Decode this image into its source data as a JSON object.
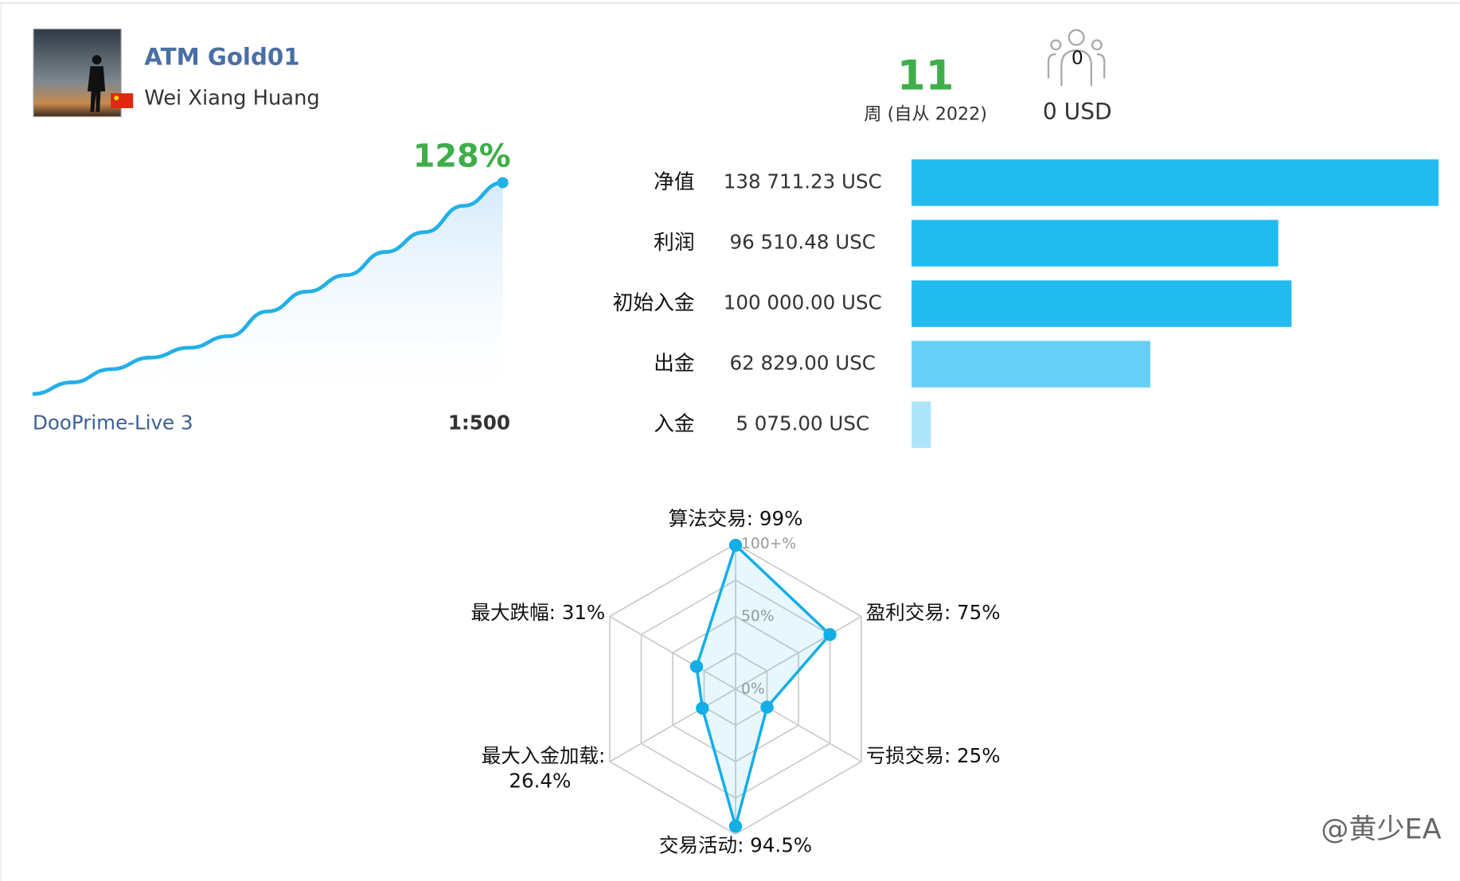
{
  "profile": {
    "name": "ATM Gold01",
    "author": "Wei Xiang Huang",
    "server": "DooPrime-Live 3",
    "leverage": "1:500"
  },
  "weeks": {
    "value": 11,
    "label": "周 (自从 2022)"
  },
  "subscribers": {
    "count": 0,
    "funds": "0 USD"
  },
  "growth": {
    "type": "line",
    "values": [
      0,
      7,
      15,
      22,
      28,
      35,
      50,
      62,
      72,
      86,
      98,
      114,
      128
    ],
    "value_label": "128%",
    "color": "#22b0e8"
  },
  "balance_bars": {
    "type": "bar",
    "categories": [
      "净值",
      "利润",
      "初始入金",
      "出金",
      "入金"
    ],
    "values": [
      138711.23,
      96510.48,
      100000.0,
      62829.0,
      5075.0
    ],
    "value_labels": [
      "138 711.23 USC",
      "96 510.48 USC",
      "100 000.00 USC",
      "62 829.00 USC",
      "5 075.00 USC"
    ],
    "colors": [
      "#22bbef",
      "#22bbef",
      "#22bbef",
      "#66cff5",
      "#aee5fa"
    ]
  },
  "radar": {
    "type": "radar",
    "color": "#13aee6",
    "axes": [
      {
        "label_lines": [
          "算法交易: 99%"
        ],
        "value": 99
      },
      {
        "label_lines": [
          "盈利交易: 75%"
        ],
        "value": 75
      },
      {
        "label_lines": [
          "亏损交易: 25%"
        ],
        "value": 25
      },
      {
        "label_lines": [
          "交易活动: 94.5%"
        ],
        "value": 94.5
      },
      {
        "label_lines": [
          "最大入金加载:",
          "26.4%"
        ],
        "value": 26.4
      },
      {
        "label_lines": [
          "最大跌幅: 31%"
        ],
        "value": 31
      }
    ],
    "rlim": [
      0,
      100
    ],
    "rings": [
      25,
      50,
      75,
      100
    ],
    "rticks": [
      {
        "value": 0,
        "label": "0%"
      },
      {
        "value": 50,
        "label": "50%"
      },
      {
        "value": 100,
        "label": "100+%"
      }
    ]
  },
  "watermark": "@黄少EA"
}
